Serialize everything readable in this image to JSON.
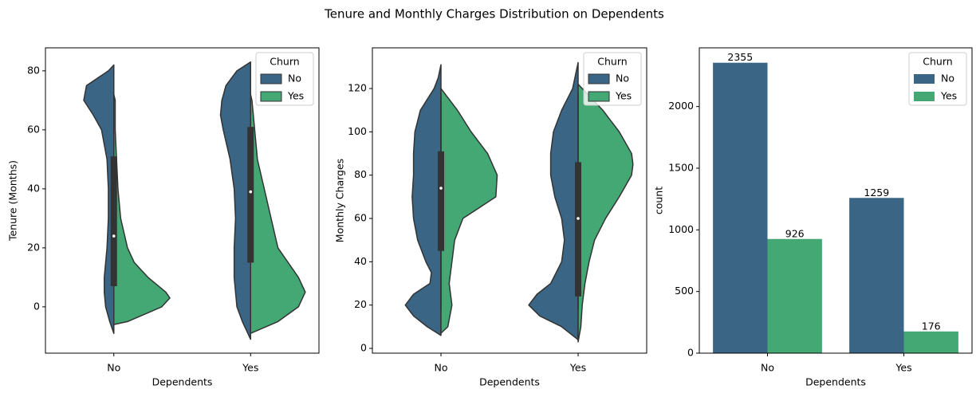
{
  "title": "Tenure and Monthly Charges Distribution on Dependents",
  "chart_data": [
    {
      "type": "violin",
      "xlabel": "Dependents",
      "ylabel": "Tenure (Months)",
      "categories": [
        "No",
        "Yes"
      ],
      "ylim": [
        -15.7,
        87.8
      ],
      "yticks": [
        0,
        20,
        40,
        60,
        80
      ],
      "legend_title": "Churn",
      "legend": "upper right",
      "series": [
        {
          "name": "No",
          "color": "#3b6584",
          "violins": [
            {
              "y": [
                -9,
                -5,
                0,
                5,
                10,
                20,
                30,
                40,
                50,
                60,
                65,
                70,
                75,
                80,
                82
              ],
              "width": [
                0,
                0.03,
                0.06,
                0.07,
                0.07,
                0.05,
                0.04,
                0.04,
                0.05,
                0.09,
                0.15,
                0.22,
                0.2,
                0.04,
                0
              ]
            },
            {
              "y": [
                -11,
                -5,
                0,
                5,
                10,
                20,
                30,
                40,
                50,
                60,
                65,
                70,
                75,
                80,
                83
              ],
              "width": [
                0,
                0.06,
                0.1,
                0.11,
                0.12,
                0.12,
                0.11,
                0.12,
                0.15,
                0.2,
                0.22,
                0.21,
                0.18,
                0.1,
                0
              ]
            }
          ]
        },
        {
          "name": "Yes",
          "color": "#43a874",
          "violins": [
            {
              "y": [
                -6,
                -5,
                0,
                3,
                5,
                10,
                15,
                20,
                30,
                40,
                50,
                60,
                70,
                72
              ],
              "width": [
                0,
                0.1,
                0.35,
                0.41,
                0.38,
                0.25,
                0.15,
                0.1,
                0.05,
                0.03,
                0.02,
                0.01,
                0.01,
                0
              ]
            },
            {
              "y": [
                -9,
                -5,
                0,
                5,
                10,
                20,
                30,
                40,
                50,
                60,
                70,
                72
              ],
              "width": [
                0,
                0.2,
                0.35,
                0.4,
                0.35,
                0.2,
                0.15,
                0.1,
                0.05,
                0.03,
                0.01,
                0
              ]
            }
          ]
        }
      ],
      "boxes": [
        {
          "whislo": 0,
          "q1": 7,
          "med": 24,
          "q3": 51,
          "whishi": 72
        },
        {
          "whislo": 0,
          "q1": 15,
          "med": 39,
          "q3": 61,
          "whishi": 72
        }
      ]
    },
    {
      "type": "violin",
      "xlabel": "Dependents",
      "ylabel": "Monthly Charges",
      "categories": [
        "No",
        "Yes"
      ],
      "ylim": [
        -2.2,
        138.8
      ],
      "yticks": [
        0,
        20,
        40,
        60,
        80,
        100,
        120
      ],
      "legend_title": "Churn",
      "legend": "upper right",
      "series": [
        {
          "name": "No",
          "color": "#3b6584",
          "violins": [
            {
              "y": [
                6,
                10,
                15,
                20,
                25,
                30,
                35,
                40,
                50,
                60,
                70,
                80,
                90,
                100,
                110,
                120,
                125,
                131
              ],
              "width": [
                0,
                0.1,
                0.2,
                0.26,
                0.2,
                0.08,
                0.07,
                0.11,
                0.17,
                0.2,
                0.21,
                0.2,
                0.2,
                0.19,
                0.15,
                0.05,
                0.02,
                0
              ]
            },
            {
              "y": [
                4,
                10,
                15,
                20,
                25,
                30,
                40,
                50,
                60,
                70,
                80,
                90,
                100,
                110,
                120,
                126,
                132
              ],
              "width": [
                0,
                0.12,
                0.28,
                0.36,
                0.3,
                0.2,
                0.12,
                0.1,
                0.12,
                0.17,
                0.2,
                0.2,
                0.18,
                0.12,
                0.04,
                0.02,
                0
              ]
            }
          ]
        },
        {
          "name": "Yes",
          "color": "#43a874",
          "violins": [
            {
              "y": [
                7,
                10,
                20,
                30,
                40,
                50,
                60,
                65,
                70,
                80,
                90,
                100,
                110,
                120
              ],
              "width": [
                0,
                0.05,
                0.08,
                0.06,
                0.08,
                0.1,
                0.16,
                0.28,
                0.4,
                0.41,
                0.34,
                0.22,
                0.12,
                0
              ]
            },
            {
              "y": [
                3,
                10,
                20,
                30,
                40,
                50,
                60,
                70,
                80,
                85,
                90,
                100,
                110,
                120,
                122
              ],
              "width": [
                0,
                0.02,
                0.03,
                0.05,
                0.08,
                0.12,
                0.2,
                0.3,
                0.39,
                0.4,
                0.39,
                0.3,
                0.18,
                0.03,
                0
              ]
            }
          ]
        }
      ],
      "boxes": [
        {
          "whislo": 18,
          "q1": 45,
          "med": 74,
          "q3": 91,
          "whishi": 118
        },
        {
          "whislo": 18,
          "q1": 24,
          "med": 60,
          "q3": 86,
          "whishi": 118
        }
      ]
    },
    {
      "type": "bar",
      "xlabel": "Dependents",
      "ylabel": "count",
      "categories": [
        "No",
        "Yes"
      ],
      "ylim": [
        0,
        2476
      ],
      "yticks": [
        0,
        500,
        1000,
        1500,
        2000
      ],
      "legend_title": "Churn",
      "legend": "upper right",
      "series": [
        {
          "name": "No",
          "color": "#3b6584",
          "values": [
            2355,
            1259
          ]
        },
        {
          "name": "Yes",
          "color": "#43a874",
          "values": [
            926,
            176
          ]
        }
      ]
    }
  ]
}
